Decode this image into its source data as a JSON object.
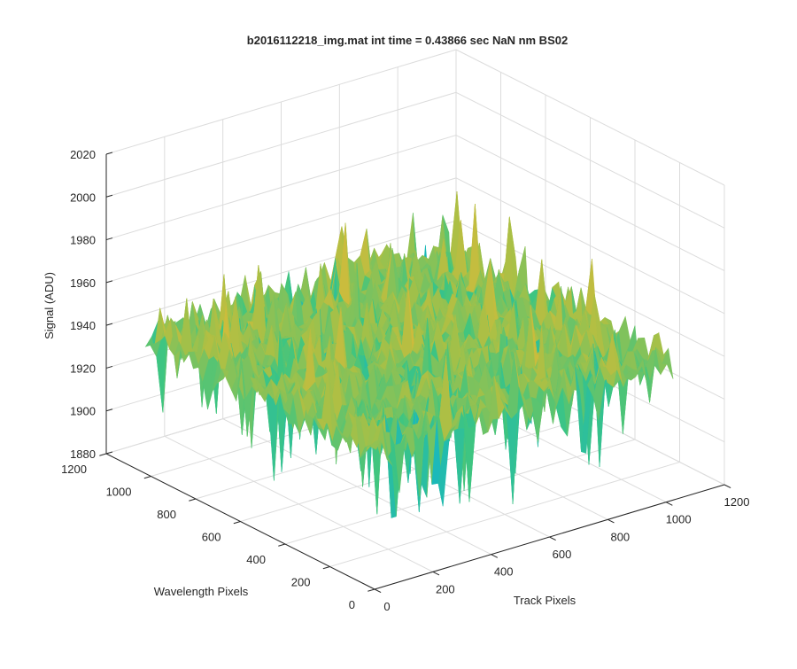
{
  "chart_data": {
    "type": "surface",
    "title": "b2016112218_img.mat int time = 0.43866 sec  NaN nm BS02",
    "xlabel": "Track Pixels",
    "ylabel": "Wavelength Pixels",
    "zlabel": "Signal (ADU)",
    "xlim": [
      0,
      1200
    ],
    "ylim": [
      0,
      1200
    ],
    "zlim": [
      1880,
      2020
    ],
    "xticks": [
      "0",
      "200",
      "400",
      "600",
      "800",
      "1000",
      "1200"
    ],
    "yticks": [
      "0",
      "200",
      "400",
      "600",
      "800",
      "1000",
      "1200"
    ],
    "zticks": [
      "1880",
      "1900",
      "1920",
      "1940",
      "1960",
      "1980",
      "2000",
      "2020"
    ],
    "grid": true,
    "colormap": "parula",
    "surface": {
      "x_range": [
        0,
        1024
      ],
      "y_range": [
        0,
        1024
      ],
      "mean_signal": 1945,
      "min_signal": 1880,
      "max_signal": 2000
    }
  },
  "colors": {
    "axis": "#262626",
    "grid": "#dcdcdc",
    "colormap_stops": [
      "#3e26a8",
      "#2e87f7",
      "#14b6c5",
      "#3fc580",
      "#a8c046",
      "#e9b835",
      "#f9fb0e"
    ]
  }
}
